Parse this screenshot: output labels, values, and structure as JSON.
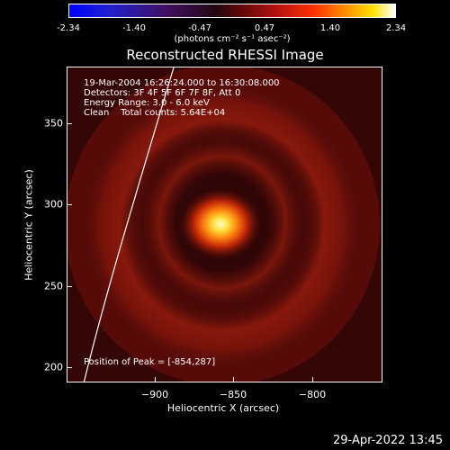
{
  "colorbar": {
    "ticks": [
      "-2.34",
      "-1.40",
      "-0.47",
      "0.47",
      "1.40",
      "2.34"
    ],
    "units": "(photons cm⁻² s⁻¹ asec⁻²)"
  },
  "plot": {
    "title": "Reconstructed RHESSI Image",
    "info_lines": [
      "19-Mar-2004 16:26:24.000 to 16:30:08.000",
      "Detectors: 3F 4F 5F 6F 7F 8F, Att 0",
      "Energy Range: 3.0 - 6.0 keV",
      "Clean    Total counts: 5.64E+04"
    ],
    "peak_text": "Position of Peak = [-854,287]",
    "xlabel": "Heliocentric X (arcsec)",
    "ylabel": "Heliocentric Y (arcsec)",
    "xticks": [
      "−900",
      "−850",
      "−800"
    ],
    "yticks": [
      "350",
      "300",
      "250",
      "200"
    ]
  },
  "chart_data": {
    "type": "heatmap",
    "title": "Reconstructed RHESSI Image",
    "xlabel": "Heliocentric X (arcsec)",
    "ylabel": "Heliocentric Y (arcsec)",
    "xlim": [
      -948,
      -820
    ],
    "ylim": [
      193,
      384
    ],
    "colorbar_range": [
      -2.34,
      2.34
    ],
    "peak": {
      "x": -854,
      "y": 287
    }
  },
  "timestamp": "29-Apr-2022 13:45"
}
